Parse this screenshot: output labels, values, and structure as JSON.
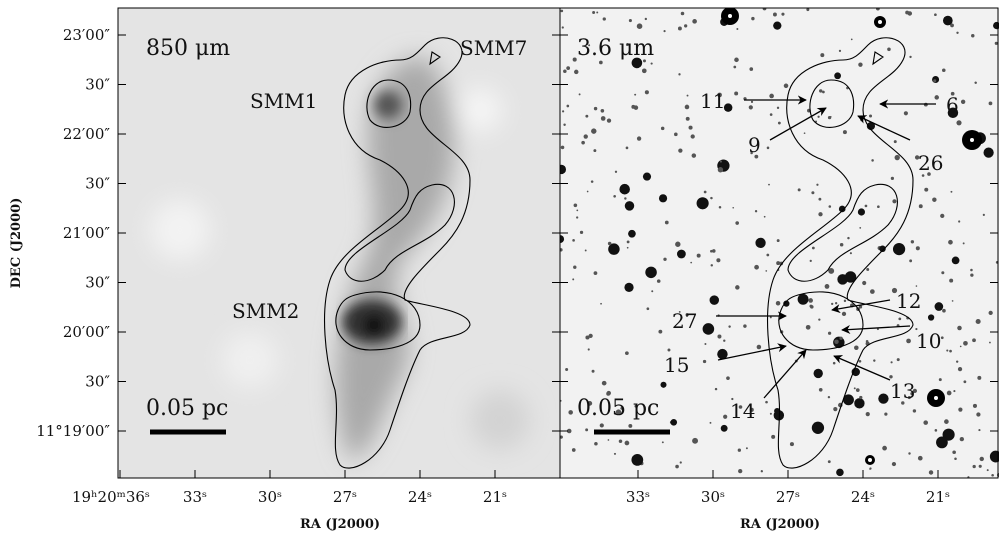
{
  "left_panel": {
    "label": "850 μm",
    "sources": [
      "SMM1",
      "SMM7",
      "SMM2"
    ],
    "scale_bar": "0.05 pc",
    "x_ticks": [
      "19ʰ20ᵐ36ˢ",
      "33ˢ",
      "30ˢ",
      "27ˢ",
      "24ˢ",
      "21ˢ"
    ],
    "y_ticks": [
      "23′00″",
      "30″",
      "22′00″",
      "30″",
      "21′00″",
      "30″",
      "20′00″",
      "30″",
      "11°19′00″"
    ],
    "x_axis_label": "RA (J2000)",
    "y_axis_label": "DEC (J2000)"
  },
  "right_panel": {
    "label": "3.6 μm",
    "scale_bar": "0.05 pc",
    "x_ticks": [
      "33ˢ",
      "30ˢ",
      "27ˢ",
      "24ˢ",
      "21ˢ"
    ],
    "x_axis_label": "RA (J2000)",
    "sources": [
      "11",
      "6",
      "9",
      "26",
      "27",
      "12",
      "10",
      "15",
      "13",
      "14"
    ]
  }
}
